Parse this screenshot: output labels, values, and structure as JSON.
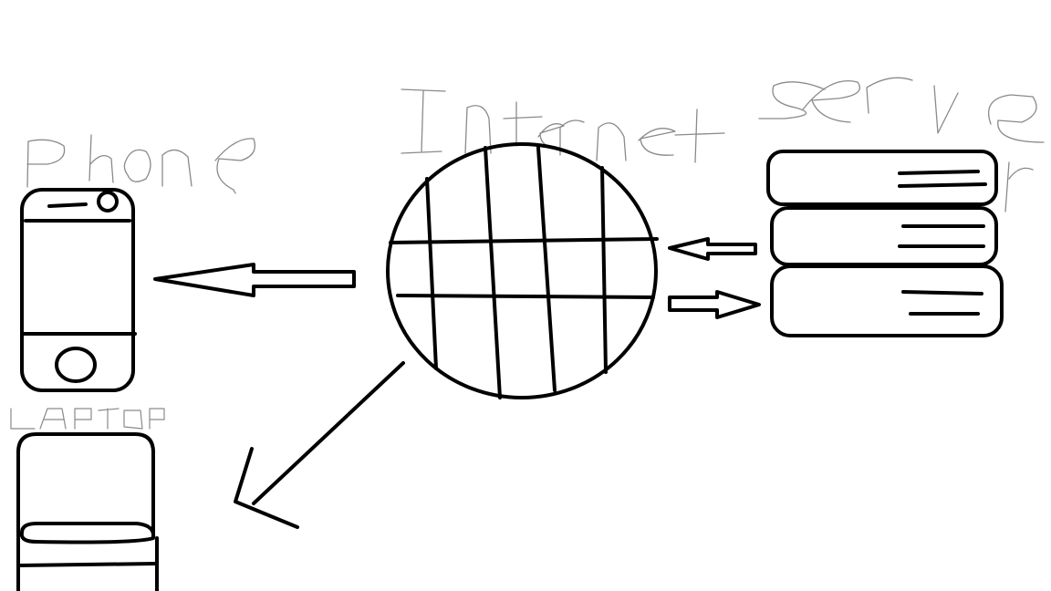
{
  "colors": {
    "ink": "#000000",
    "label_ink": "#8a8a8a",
    "background": "#ffffff"
  },
  "labels": {
    "phone": "Phone",
    "laptop": "LAPTOP",
    "internet": "Internet",
    "server": "Server"
  },
  "icons": {
    "phone": "phone-icon",
    "laptop": "laptop-icon",
    "globe": "globe-icon",
    "server": "server-stack-icon"
  }
}
